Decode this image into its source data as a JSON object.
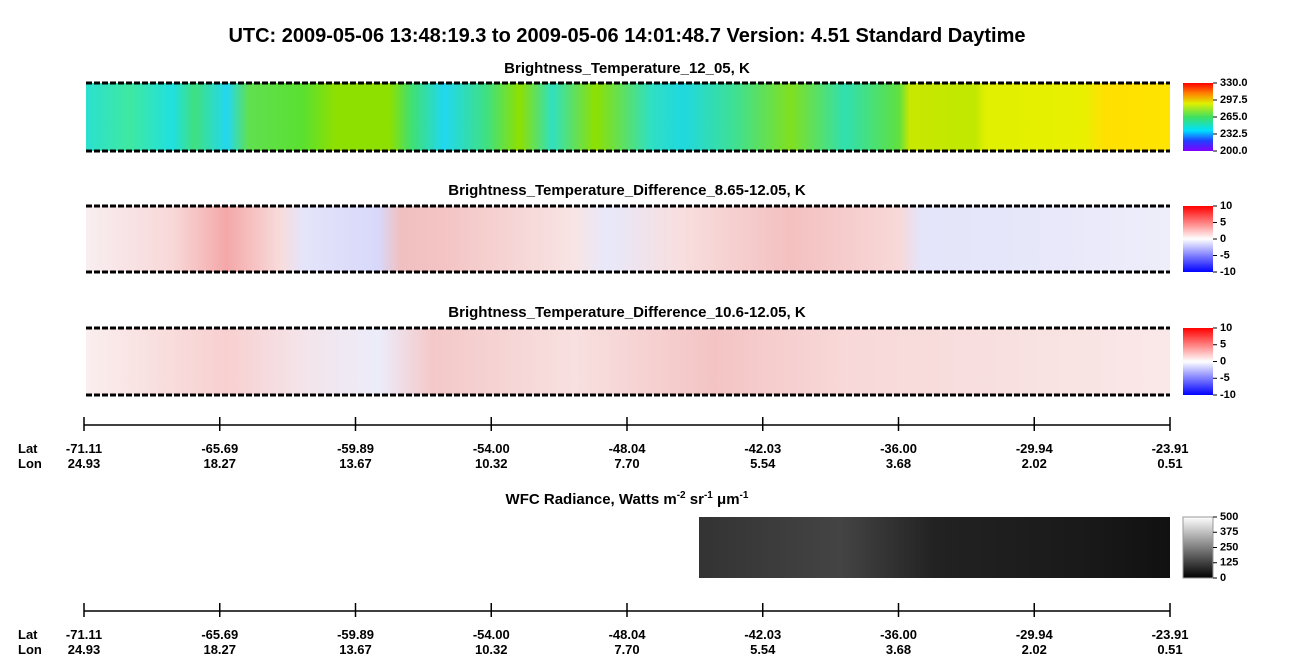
{
  "header": {
    "title": "UTC:  2009-05-06   13:48:19.3  to  2009-05-06   14:01:48.7    Version: 4.51  Standard Daytime"
  },
  "panels": [
    {
      "title": "Brightness_Temperature_12_05, K",
      "colorbar": {
        "ylim": [
          200,
          330
        ],
        "yticks": [
          {
            "value": 200,
            "label": "200.0"
          },
          {
            "value": 232.5,
            "label": "232.5"
          },
          {
            "value": 265,
            "label": "265.0"
          },
          {
            "value": 297.5,
            "label": "297.5"
          },
          {
            "value": 330,
            "label": "330.0"
          }
        ]
      }
    },
    {
      "title": "Brightness_Temperature_Difference_8.65-12.05, K",
      "colorbar": {
        "ylim": [
          -10,
          10
        ],
        "yticks": [
          -10,
          -5,
          0,
          5,
          10
        ]
      }
    },
    {
      "title": "Brightness_Temperature_Difference_10.6-12.05, K",
      "colorbar": {
        "ylim": [
          -10,
          10
        ],
        "yticks": [
          -10,
          -5,
          0,
          5,
          10
        ]
      }
    },
    {
      "title": "WFC Radiance, Watts m",
      "title_parts": [
        "-2",
        " sr",
        "-1",
        " μm",
        "-1"
      ],
      "colorbar": {
        "ylim": [
          0,
          500
        ],
        "yticks": [
          0,
          125,
          250,
          375,
          500
        ]
      }
    }
  ],
  "axes": [
    {
      "lat_label": "Lat",
      "lon_label": "Lon",
      "lat": [
        "-71.11",
        "-65.69",
        "-59.89",
        "-54.00",
        "-48.04",
        "-42.03",
        "-36.00",
        "-29.94",
        "-23.91"
      ],
      "lon": [
        "24.93",
        "18.27",
        "13.67",
        "10.32",
        "7.70",
        "5.54",
        "3.68",
        "2.02",
        "0.51"
      ]
    },
    {
      "lat_label": "Lat",
      "lon_label": "Lon",
      "lat": [
        "-71.11",
        "-65.69",
        "-59.89",
        "-54.00",
        "-48.04",
        "-42.03",
        "-36.00",
        "-29.94",
        "-23.91"
      ],
      "lon": [
        "24.93",
        "18.27",
        "13.67",
        "10.32",
        "7.70",
        "5.54",
        "3.68",
        "2.02",
        "0.51"
      ]
    }
  ]
}
